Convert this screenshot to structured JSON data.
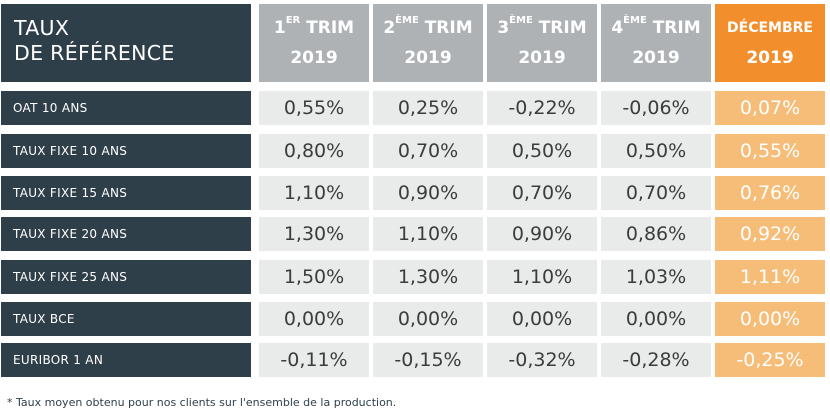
{
  "title": {
    "line1": "TAUX",
    "line2": "DE RÉFÉRENCE"
  },
  "columns": [
    {
      "line1_main": "1",
      "line1_sup": "ER",
      "line1_rest": " TRIM",
      "line2": "2019"
    },
    {
      "line1_main": "2",
      "line1_sup": "ÈME",
      "line1_rest": " TRIM",
      "line2": "2019"
    },
    {
      "line1_main": "3",
      "line1_sup": "ÈME",
      "line1_rest": " TRIM",
      "line2": "2019"
    },
    {
      "line1_main": "4",
      "line1_sup": "ÈME",
      "line1_rest": " TRIM",
      "line2": "2019"
    },
    {
      "line1_main": "DÉCEMBRE",
      "line1_sup": "",
      "line1_rest": "",
      "line2": "2019"
    }
  ],
  "rows": [
    {
      "label": "OAT 10 ANS",
      "values": [
        "0,55%",
        "0,25%",
        "-0,22%",
        "-0,06%",
        "0,07%"
      ]
    },
    {
      "label": "TAUX FIXE 10 ANS",
      "values": [
        "0,80%",
        "0,70%",
        "0,50%",
        "0,50%",
        "0,55%"
      ]
    },
    {
      "label": "TAUX FIXE 15 ANS",
      "values": [
        "1,10%",
        "0,90%",
        "0,70%",
        "0,70%",
        "0,76%"
      ]
    },
    {
      "label": "TAUX FIXE 20 ANS",
      "values": [
        "1,30%",
        "1,10%",
        "0,90%",
        "0,86%",
        "0,92%"
      ]
    },
    {
      "label": "TAUX FIXE 25 ANS",
      "values": [
        "1,50%",
        "1,30%",
        "1,10%",
        "1,03%",
        "1,11%"
      ]
    },
    {
      "label": "TAUX BCE",
      "values": [
        "0,00%",
        "0,00%",
        "0,00%",
        "0,00%",
        "0,00%"
      ]
    },
    {
      "label": "EURIBOR 1 AN",
      "values": [
        "-0,11%",
        "-0,15%",
        "-0,32%",
        "-0,28%",
        "-0,25%"
      ]
    }
  ],
  "footnote": "* Taux moyen obtenu pour nos clients sur l'ensemble de la production.",
  "colors": {
    "dark": "#2f3f4a",
    "grey_header": "#aeb2b5",
    "cell": "#e9eaea",
    "orange": "#f28f2c",
    "orange_light": "#f6bd79"
  }
}
